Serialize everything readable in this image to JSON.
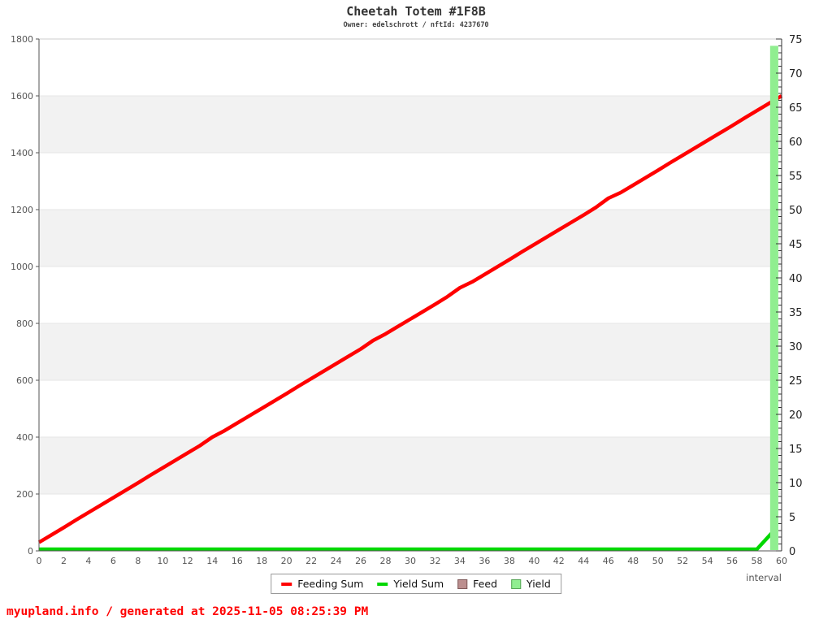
{
  "header": {
    "title": "Cheetah Totem #1F8B",
    "subtitle": "Owner: edelschrott / nftId: 4237670"
  },
  "footer": {
    "text": "myupland.info / generated at 2025-11-05 08:25:39 PM",
    "color": "#ff0000"
  },
  "chart_data": {
    "type": "line",
    "title": "Cheetah Totem #1F8B",
    "subtitle": "Owner: edelschrott / nftId: 4237670",
    "xlabel": "interval",
    "x_axis": {
      "min": 0,
      "max": 60,
      "tick_step": 2
    },
    "left_axis": {
      "min": 0,
      "max": 1800,
      "tick_step": 200
    },
    "right_axis": {
      "min": 0,
      "max": 75,
      "tick_step": 5,
      "minor_step": 1
    },
    "series": [
      {
        "name": "Feeding Sum",
        "axis": "left",
        "color": "#ff0000",
        "x": [
          0,
          1,
          2,
          3,
          4,
          5,
          6,
          7,
          8,
          9,
          10,
          11,
          12,
          13,
          14,
          15,
          16,
          17,
          18,
          19,
          20,
          21,
          22,
          23,
          24,
          25,
          26,
          27,
          28,
          29,
          30,
          31,
          32,
          33,
          34,
          35,
          36,
          37,
          38,
          39,
          40,
          41,
          42,
          43,
          44,
          45,
          46,
          47,
          48,
          49,
          50,
          51,
          52,
          53,
          54,
          55,
          56,
          57,
          58,
          59,
          60
        ],
        "values": [
          30,
          56,
          82,
          109,
          135,
          161,
          187,
          213,
          239,
          266,
          292,
          318,
          344,
          370,
          400,
          423,
          449,
          475,
          501,
          527,
          553,
          580,
          606,
          632,
          658,
          684,
          710,
          740,
          763,
          789,
          815,
          841,
          867,
          894,
          925,
          946,
          972,
          998,
          1024,
          1051,
          1077,
          1103,
          1129,
          1155,
          1181,
          1208,
          1240,
          1260,
          1286,
          1312,
          1338,
          1365,
          1391,
          1417,
          1443,
          1469,
          1495,
          1522,
          1548,
          1574,
          1600
        ]
      },
      {
        "name": "Yield Sum",
        "axis": "right",
        "color": "#00d800",
        "x": [
          0,
          58,
          59.4
        ],
        "values": [
          0,
          0,
          3
        ]
      }
    ],
    "bars": [
      {
        "name": "Yield",
        "axis": "right",
        "color": "#90ee90",
        "x": 59.4,
        "width": 0.66,
        "value": 74
      }
    ],
    "legend": [
      {
        "label": "Feeding Sum",
        "type": "line",
        "color": "#ff0000"
      },
      {
        "label": "Yield Sum",
        "type": "line",
        "color": "#00d800"
      },
      {
        "label": "Feed",
        "type": "box",
        "color": "#bc8f8f",
        "border": "#7f5a5a"
      },
      {
        "label": "Yield",
        "type": "box",
        "color": "#90ee90",
        "border": "#55a555"
      }
    ],
    "style": {
      "band_color": "#f2f2f2",
      "grid_color": "#e5e5e5",
      "axis_color": "#555555",
      "right_axis_color": "#333333",
      "top_border_color": "#cccccc",
      "left_label_color": "#555555",
      "right_label_color": "#222222",
      "x_label_color": "#555555"
    }
  }
}
